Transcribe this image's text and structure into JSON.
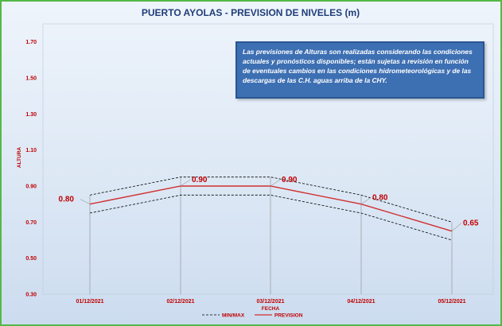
{
  "chart_data": {
    "type": "line",
    "title": "PUERTO AYOLAS - PREVISION DE NIVELES (m)",
    "xlabel": "FECHA",
    "ylabel": "ALTURA",
    "categories": [
      "01/12/2021",
      "02/12/2021",
      "03/12/2021",
      "04/12/2021",
      "05/12/2021"
    ],
    "series": [
      {
        "name": "PREVISION",
        "values": [
          0.8,
          0.9,
          0.9,
          0.8,
          0.65
        ],
        "color": "#d03030",
        "style": "solid"
      },
      {
        "name": "MIN/MAX",
        "values_max": [
          0.85,
          0.95,
          0.95,
          0.85,
          0.7
        ],
        "values_min": [
          0.75,
          0.85,
          0.85,
          0.75,
          0.6
        ],
        "color": "#000000",
        "style": "dashed"
      }
    ],
    "data_labels": [
      "0.80",
      "0.90",
      "0.90",
      "0.80",
      "0.65"
    ],
    "ylim": [
      0.3,
      1.8
    ],
    "yticks": [
      "0.30",
      "0.50",
      "0.70",
      "0.90",
      "1.10",
      "1.30",
      "1.50",
      "1.70"
    ],
    "ytick_values": [
      0.3,
      0.5,
      0.7,
      0.9,
      1.1,
      1.3,
      1.5,
      1.7
    ],
    "grid": false,
    "legend": {
      "placement": "bottom",
      "entries": [
        "MIN/MAX",
        "PREVISION"
      ]
    }
  },
  "note": "Las previsiones de Alturas son realizadas considerando las condiciones actuales y pronósticos disponibles; están sujetas a revisión en función de eventuales cambios en las condiciones hidrometeorológicas y de las descargas de las C.H. aguas arriba de la CHY.",
  "colors": {
    "frame": "#55b848",
    "accent": "#c00000",
    "title": "#1f3d7a",
    "note_bg": "#3d6fb3"
  }
}
